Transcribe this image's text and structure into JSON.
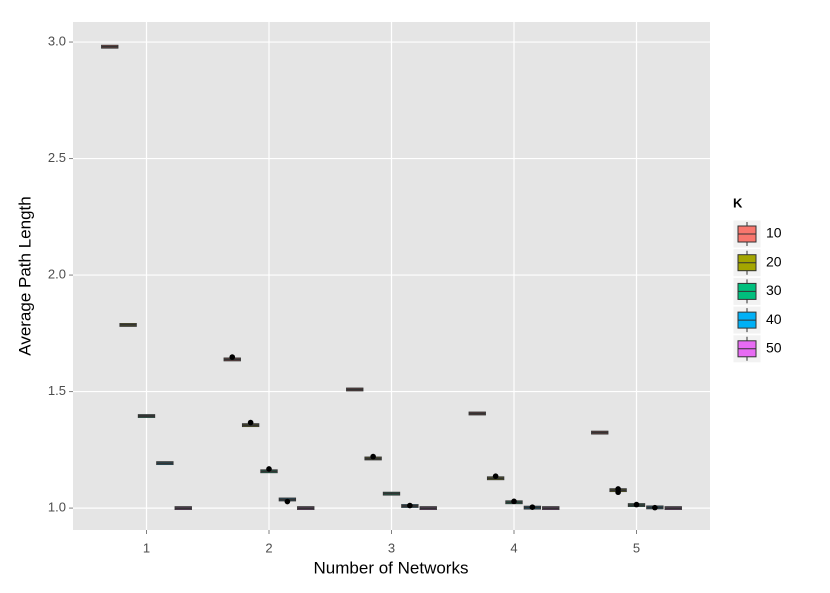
{
  "chart_data": {
    "type": "box",
    "x_label": "Number of Networks",
    "y_label": "Average Path Length",
    "categories": [
      "1",
      "2",
      "3",
      "4",
      "5"
    ],
    "legend_title": "K",
    "legend_position": "right",
    "grid": true,
    "ylim": [
      0.906,
      3.086
    ],
    "yticks": [
      {
        "value": 1,
        "label": "1.0"
      },
      {
        "value": 1.5,
        "label": "1.5"
      },
      {
        "value": 2,
        "label": "2.0"
      },
      {
        "value": 2.5,
        "label": "2.5"
      },
      {
        "value": 3,
        "label": "3.0"
      }
    ],
    "series": [
      {
        "name": "10",
        "color": "#F8766D",
        "values": [
          2.98,
          1.638,
          1.509,
          1.406,
          1.324
        ],
        "outliers": [
          [],
          [
            1.648
          ],
          [],
          [],
          []
        ]
      },
      {
        "name": "20",
        "color": "#A3A500",
        "values": [
          1.786,
          1.356,
          1.213,
          1.128,
          1.077
        ],
        "outliers": [
          [],
          [
            1.367
          ],
          [
            1.221
          ],
          [
            1.137
          ],
          [
            1.082,
            1.068
          ]
        ]
      },
      {
        "name": "30",
        "color": "#00BF7D",
        "values": [
          1.395,
          1.158,
          1.062,
          1.025,
          1.013
        ],
        "outliers": [
          [],
          [
            1.168
          ],
          [],
          [
            1.029
          ],
          [
            1.015
          ]
        ]
      },
      {
        "name": "40",
        "color": "#00B0F6",
        "values": [
          1.193,
          1.037,
          1.009,
          1.002,
          1.003
        ],
        "outliers": [
          [],
          [
            1.028
          ],
          [
            1.011
          ],
          [
            1.004
          ],
          [
            1.002
          ]
        ]
      },
      {
        "name": "50",
        "color": "#E76BF3",
        "values": [
          1.0,
          1.0,
          1.0,
          1.0,
          1.0
        ],
        "outliers": [
          [],
          [],
          [],
          [],
          []
        ]
      }
    ]
  }
}
